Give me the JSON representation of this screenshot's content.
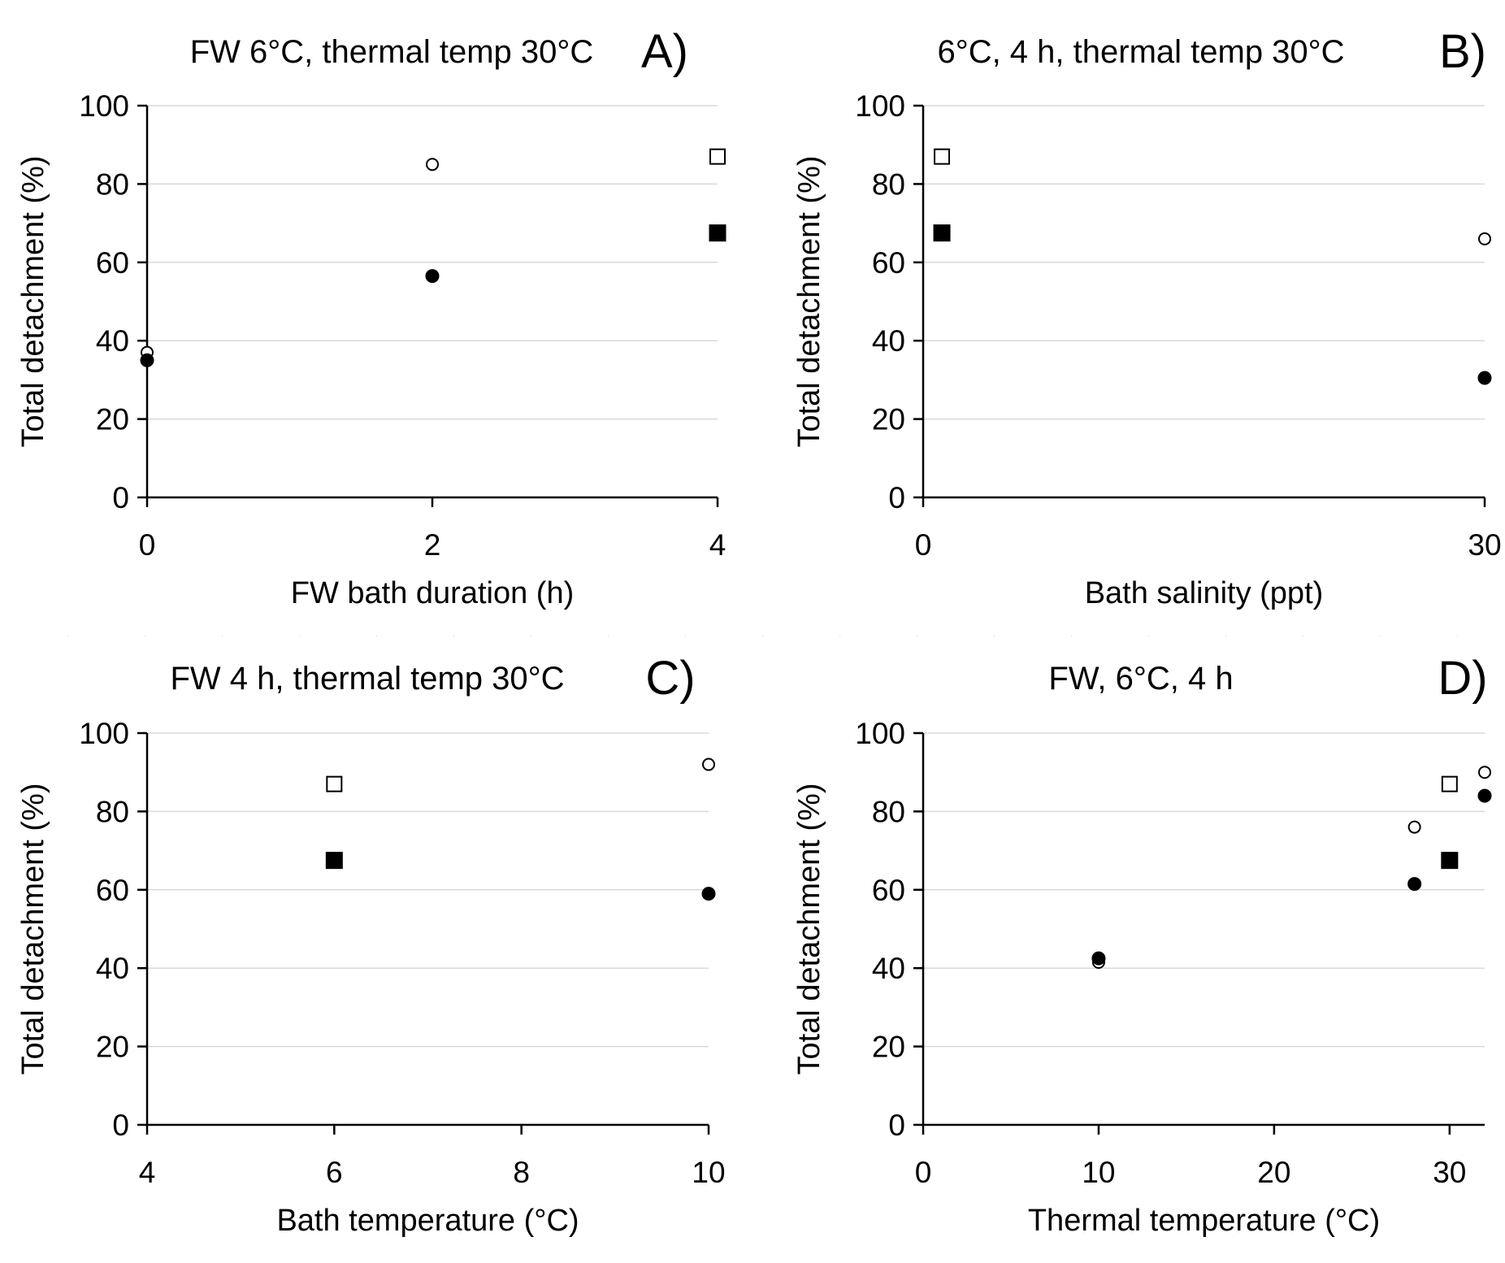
{
  "chart_data": [
    {
      "panel_label": "A)",
      "type": "scatter",
      "title": "FW 6°C, thermal temp 30°C",
      "xlabel": "FW bath duration (h)",
      "ylabel": "Total detachment (%)",
      "xlim": [
        0,
        4
      ],
      "ylim": [
        0,
        100
      ],
      "xticks": [
        0,
        2,
        4
      ],
      "yticks": [
        0,
        20,
        40,
        60,
        80,
        100
      ],
      "series": [
        {
          "name": "open circle",
          "marker": "circle-open",
          "points": [
            {
              "x": 0,
              "y": 37
            },
            {
              "x": 2,
              "y": 85
            }
          ]
        },
        {
          "name": "filled circle",
          "marker": "circle-filled",
          "points": [
            {
              "x": 0,
              "y": 35
            },
            {
              "x": 2,
              "y": 56.5
            }
          ]
        },
        {
          "name": "open square",
          "marker": "square-open",
          "points": [
            {
              "x": 4,
              "y": 87
            }
          ]
        },
        {
          "name": "filled square",
          "marker": "square-filled",
          "points": [
            {
              "x": 4,
              "y": 67.5
            }
          ]
        }
      ]
    },
    {
      "panel_label": "B)",
      "type": "scatter",
      "title": "6°C, 4 h, thermal temp 30°C",
      "xlabel": "Bath salinity (ppt)",
      "ylabel": "Total detachment (%)",
      "xlim": [
        0,
        30
      ],
      "ylim": [
        0,
        100
      ],
      "xticks": [
        0,
        30
      ],
      "yticks": [
        0,
        20,
        40,
        60,
        80,
        100
      ],
      "series": [
        {
          "name": "open circle",
          "marker": "circle-open",
          "points": [
            {
              "x": 30,
              "y": 66
            }
          ]
        },
        {
          "name": "filled circle",
          "marker": "circle-filled",
          "points": [
            {
              "x": 30,
              "y": 30.5
            }
          ]
        },
        {
          "name": "open square",
          "marker": "square-open",
          "points": [
            {
              "x": 1,
              "y": 87
            }
          ]
        },
        {
          "name": "filled square",
          "marker": "square-filled",
          "points": [
            {
              "x": 1,
              "y": 67.5
            }
          ]
        }
      ]
    },
    {
      "panel_label": "C)",
      "type": "scatter",
      "title": "FW 4 h, thermal temp 30°C",
      "xlabel": "Bath temperature (°C)",
      "ylabel": "Total detachment (%)",
      "xlim": [
        4,
        10
      ],
      "ylim": [
        0,
        100
      ],
      "xticks": [
        4,
        6,
        8,
        10
      ],
      "yticks": [
        0,
        20,
        40,
        60,
        80,
        100
      ],
      "series": [
        {
          "name": "open circle",
          "marker": "circle-open",
          "points": [
            {
              "x": 10,
              "y": 92
            }
          ]
        },
        {
          "name": "filled circle",
          "marker": "circle-filled",
          "points": [
            {
              "x": 10,
              "y": 59
            }
          ]
        },
        {
          "name": "open square",
          "marker": "square-open",
          "points": [
            {
              "x": 6,
              "y": 87
            }
          ]
        },
        {
          "name": "filled square",
          "marker": "square-filled",
          "points": [
            {
              "x": 6,
              "y": 67.5
            }
          ]
        }
      ]
    },
    {
      "panel_label": "D)",
      "type": "scatter",
      "title": "FW, 6°C, 4 h",
      "xlabel": "Thermal temperature (°C)",
      "ylabel": "Total detachment (%)",
      "xlim": [
        0,
        32
      ],
      "ylim": [
        0,
        100
      ],
      "xticks": [
        0,
        10,
        20,
        30
      ],
      "yticks": [
        0,
        20,
        40,
        60,
        80,
        100
      ],
      "series": [
        {
          "name": "open circle",
          "marker": "circle-open",
          "points": [
            {
              "x": 10,
              "y": 41.5
            },
            {
              "x": 28,
              "y": 76
            },
            {
              "x": 32,
              "y": 90
            }
          ]
        },
        {
          "name": "filled circle",
          "marker": "circle-filled",
          "points": [
            {
              "x": 10,
              "y": 42.5
            },
            {
              "x": 28,
              "y": 61.5
            },
            {
              "x": 32,
              "y": 84
            }
          ]
        },
        {
          "name": "open square",
          "marker": "square-open",
          "points": [
            {
              "x": 30,
              "y": 87
            }
          ]
        },
        {
          "name": "filled square",
          "marker": "square-filled",
          "points": [
            {
              "x": 30,
              "y": 67.5
            }
          ]
        }
      ]
    }
  ]
}
